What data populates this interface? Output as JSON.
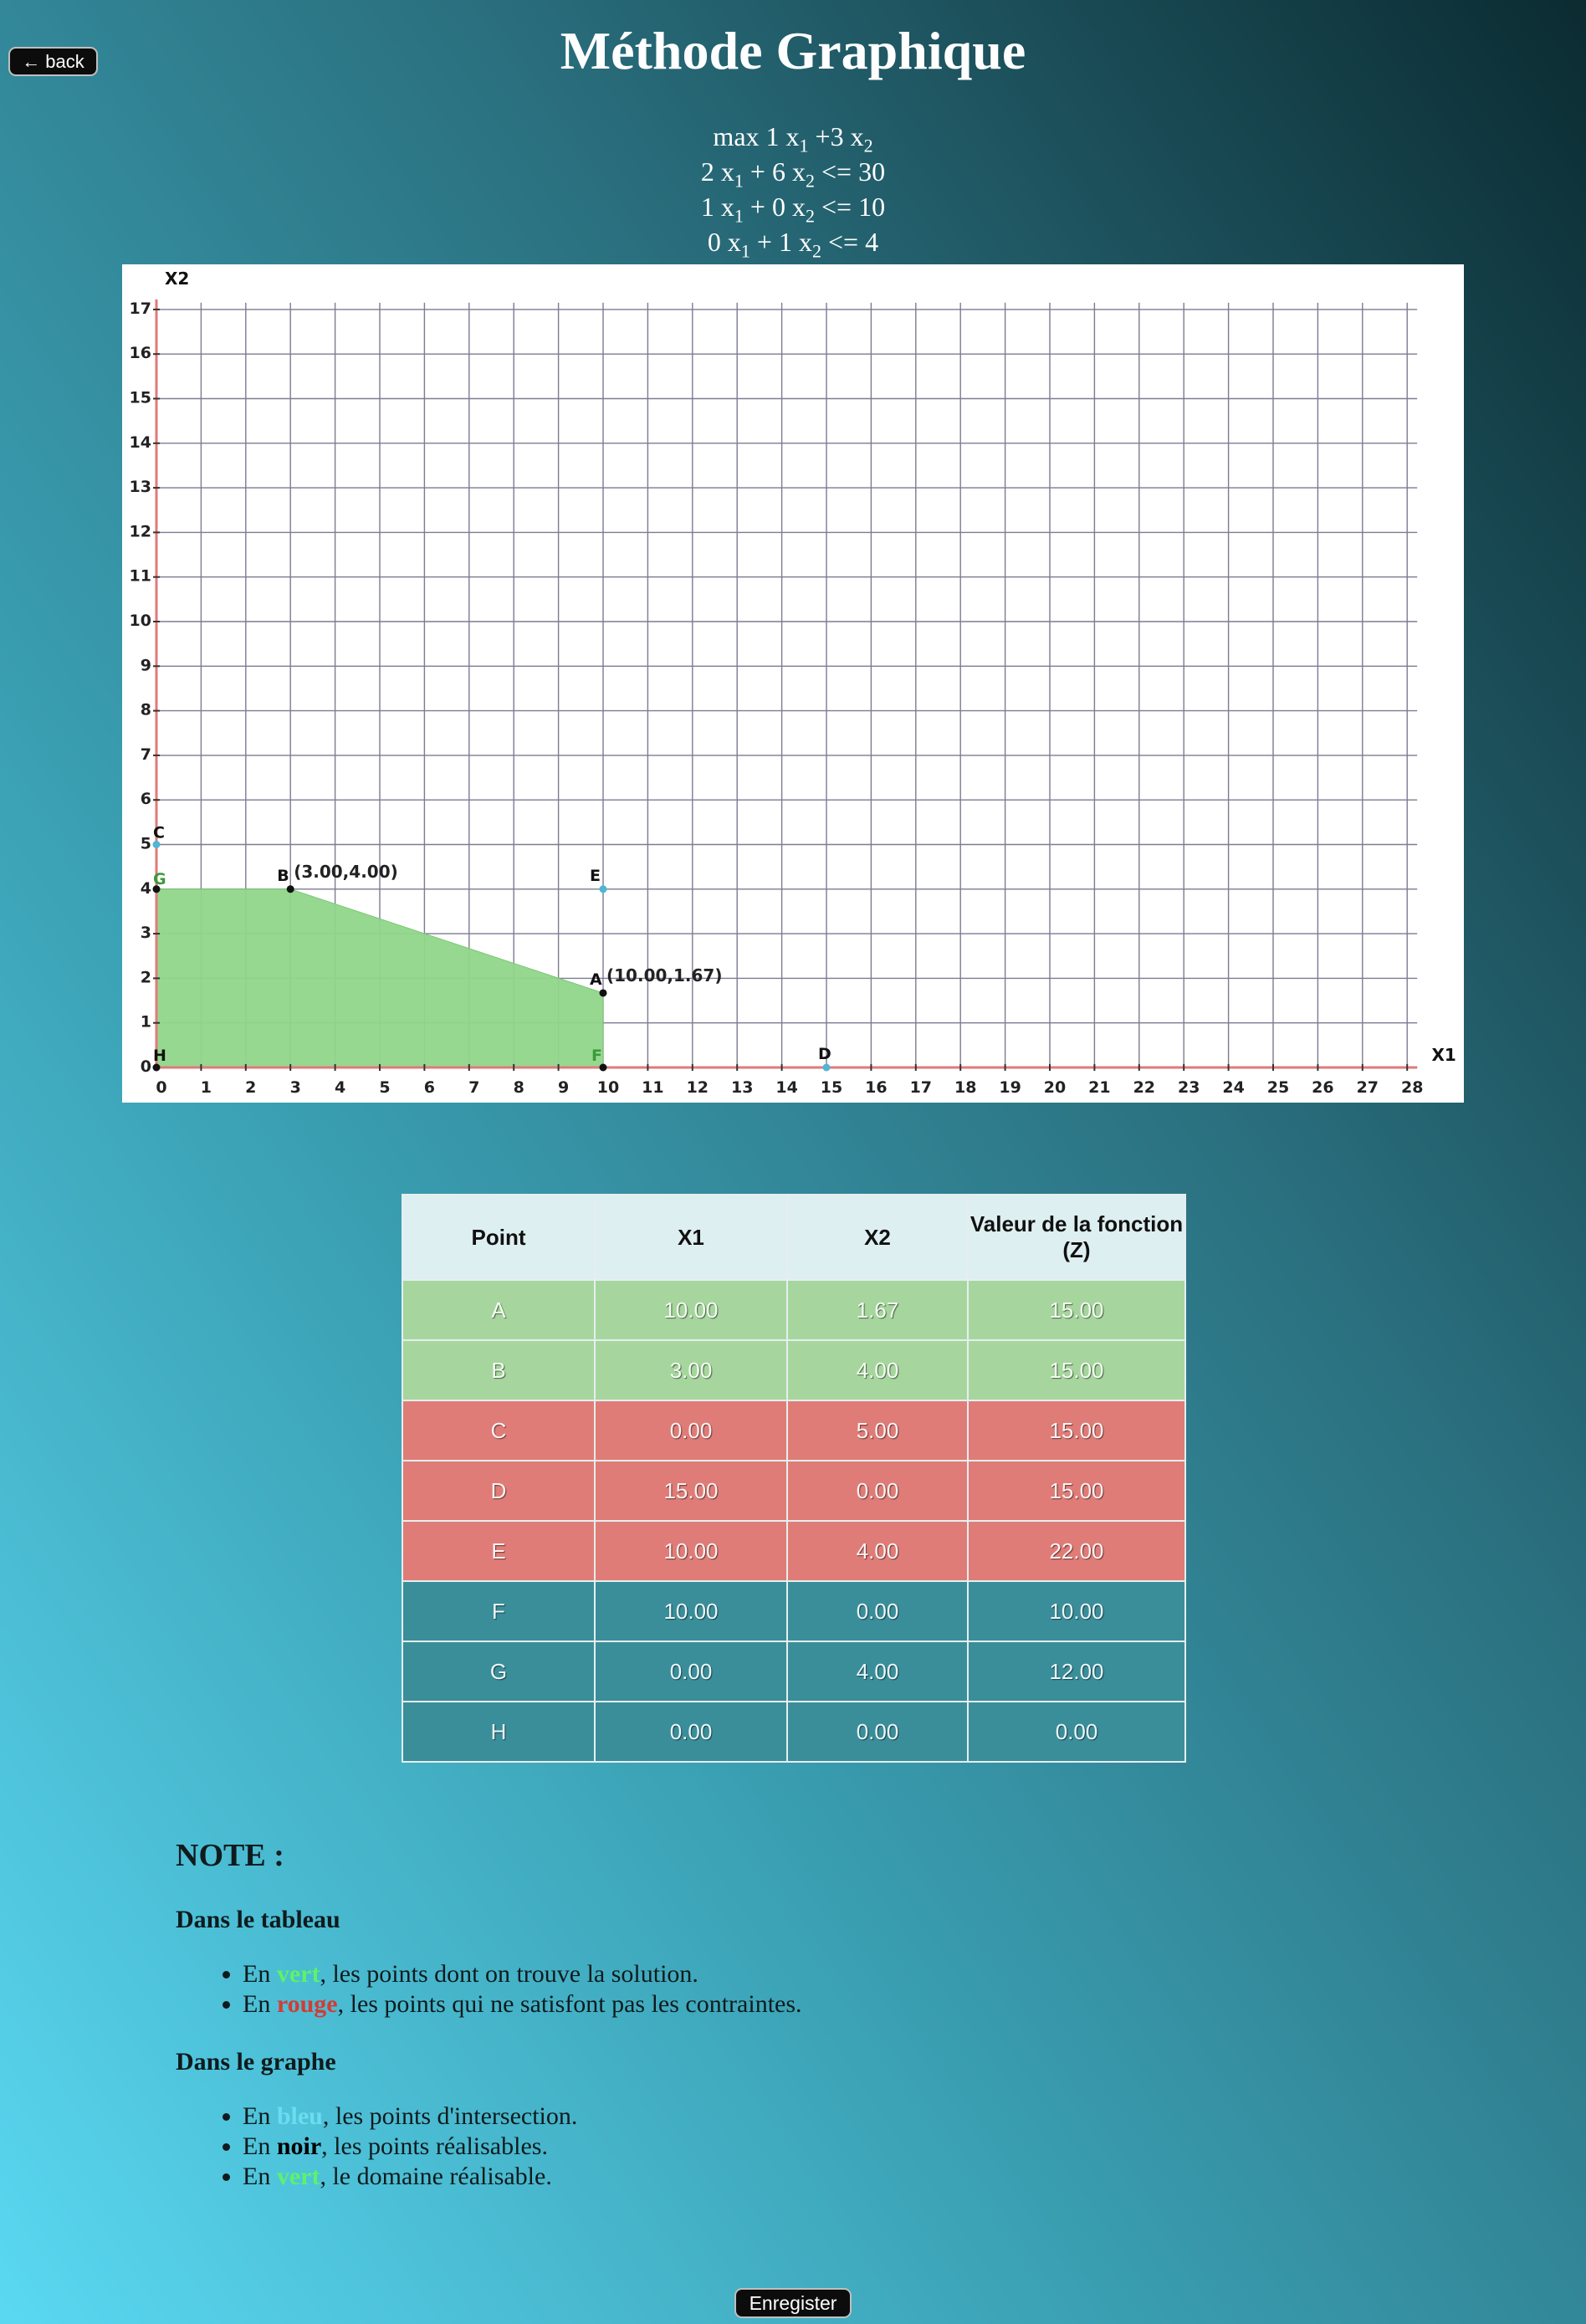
{
  "header": {
    "back_label": "back",
    "back_icon": "arrow-left-icon",
    "title": "Méthode Graphique"
  },
  "problem": {
    "objective": {
      "prefix": "max",
      "c1": "1",
      "c2": "+3"
    },
    "constraints": [
      {
        "a": "2",
        "b": "+ 6",
        "op": "<=",
        "rhs": "30"
      },
      {
        "a": "1",
        "b": "+ 0",
        "op": "<=",
        "rhs": "10"
      },
      {
        "a": "0",
        "b": "+ 1",
        "op": "<=",
        "rhs": "4"
      }
    ],
    "var_name": "x",
    "sub1": "1",
    "sub2": "2"
  },
  "chart_data": {
    "type": "scatter",
    "xlabel": "X1",
    "ylabel": "X2",
    "xlim": [
      0,
      28
    ],
    "ylim": [
      0,
      17
    ],
    "grid": true,
    "feasible_region": [
      [
        0,
        0
      ],
      [
        0,
        4
      ],
      [
        3,
        4
      ],
      [
        10,
        1.67
      ],
      [
        10,
        0
      ]
    ],
    "feasible_color": "#90d68a",
    "points": [
      {
        "label": "A",
        "x": 10,
        "y": 1.67,
        "annotation": "(10.00,1.67)",
        "kind": "feasible"
      },
      {
        "label": "B",
        "x": 3,
        "y": 4,
        "annotation": "(3.00,4.00)",
        "kind": "feasible"
      },
      {
        "label": "C",
        "x": 0,
        "y": 5,
        "kind": "intersection"
      },
      {
        "label": "D",
        "x": 15,
        "y": 0,
        "kind": "intersection"
      },
      {
        "label": "E",
        "x": 10,
        "y": 4,
        "kind": "intersection"
      },
      {
        "label": "F",
        "x": 10,
        "y": 0,
        "kind": "feasible"
      },
      {
        "label": "G",
        "x": 0,
        "y": 4,
        "kind": "feasible"
      },
      {
        "label": "H",
        "x": 0,
        "y": 0,
        "kind": "feasible"
      }
    ],
    "colors": {
      "axis": "#e07a7a",
      "grid": "#7c7b93",
      "intersection": "#4fb6d4",
      "feasible_point": "#111111",
      "tick_text": "#222222",
      "label_green": "#3a9a3a"
    }
  },
  "table": {
    "headers": [
      "Point",
      "X1",
      "X2",
      "Valeur de la fonction (Z)"
    ],
    "rows": [
      {
        "status": "ok",
        "cells": [
          "A",
          "10.00",
          "1.67",
          "15.00"
        ]
      },
      {
        "status": "ok",
        "cells": [
          "B",
          "3.00",
          "4.00",
          "15.00"
        ]
      },
      {
        "status": "bad",
        "cells": [
          "C",
          "0.00",
          "5.00",
          "15.00"
        ]
      },
      {
        "status": "bad",
        "cells": [
          "D",
          "15.00",
          "0.00",
          "15.00"
        ]
      },
      {
        "status": "bad",
        "cells": [
          "E",
          "10.00",
          "4.00",
          "22.00"
        ]
      },
      {
        "status": "neutral",
        "cells": [
          "F",
          "10.00",
          "0.00",
          "10.00"
        ]
      },
      {
        "status": "neutral",
        "cells": [
          "G",
          "0.00",
          "4.00",
          "12.00"
        ]
      },
      {
        "status": "neutral",
        "cells": [
          "H",
          "0.00",
          "0.00",
          "0.00"
        ]
      }
    ]
  },
  "notes": {
    "title": "NOTE :",
    "table_heading": "Dans le tableau",
    "table_items": [
      {
        "pre": "En ",
        "word": "vert",
        "post": ", les points dont on trouve la solution."
      },
      {
        "pre": "En ",
        "word": "rouge",
        "post": ", les points qui ne satisfont pas les contraintes."
      }
    ],
    "graph_heading": "Dans le graphe",
    "graph_items": [
      {
        "pre": "En ",
        "word": "bleu",
        "post": ", les points d'intersection."
      },
      {
        "pre": "En ",
        "word": "noir",
        "post": ", les points réalisables."
      },
      {
        "pre": "En ",
        "word": "vert",
        "post": ", le domaine réalisable."
      }
    ]
  },
  "save_label": "Enregister"
}
